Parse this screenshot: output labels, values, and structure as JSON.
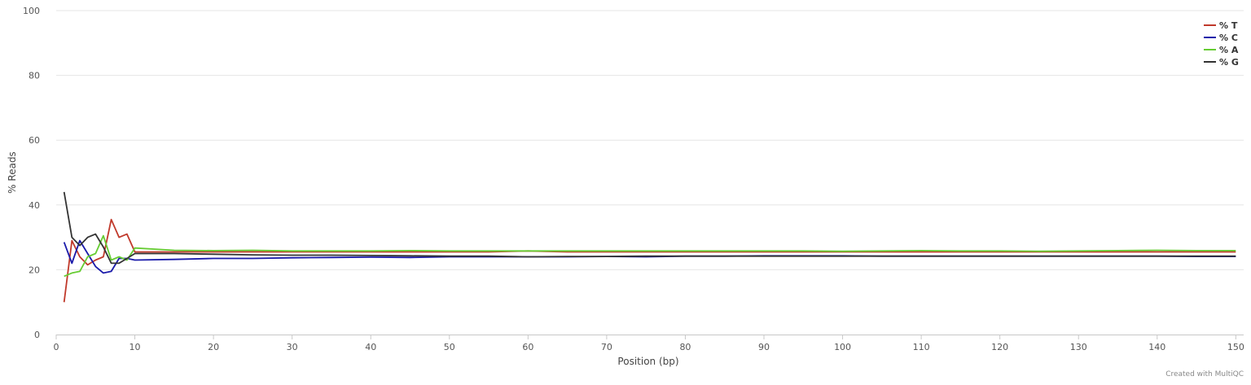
{
  "chart_data": {
    "type": "line",
    "title": "",
    "xlabel": "Position (bp)",
    "ylabel": "% Reads",
    "xlim": [
      0,
      151
    ],
    "ylim": [
      0,
      100
    ],
    "x_ticks": [
      0,
      10,
      20,
      30,
      40,
      50,
      60,
      70,
      80,
      90,
      100,
      110,
      120,
      130,
      140,
      150
    ],
    "y_ticks": [
      0,
      20,
      40,
      60,
      80,
      100
    ],
    "grid": true,
    "legend_position": "top-right",
    "x": [
      1,
      2,
      3,
      4,
      5,
      6,
      7,
      8,
      9,
      10,
      15,
      20,
      25,
      30,
      35,
      40,
      45,
      50,
      55,
      60,
      65,
      70,
      75,
      80,
      85,
      90,
      95,
      100,
      105,
      110,
      115,
      120,
      125,
      130,
      135,
      140,
      145,
      150
    ],
    "series": [
      {
        "name": "% T",
        "color": "#c0392b",
        "values": [
          10,
          29,
          24,
          21.5,
          23,
          24,
          35.5,
          30,
          31,
          25.5,
          25.5,
          25.5,
          25.5,
          25.5,
          25.5,
          25.5,
          25.5,
          25.5,
          25.5,
          25.8,
          25.5,
          25.5,
          25.5,
          25.5,
          25.5,
          25.5,
          25.5,
          25.5,
          25.5,
          25.5,
          25.5,
          25.5,
          25.5,
          25.5,
          25.5,
          25.5,
          25.5,
          25.5
        ]
      },
      {
        "name": "% C",
        "color": "#1a1aaa",
        "values": [
          28.5,
          22,
          29,
          25,
          21,
          19,
          19.5,
          23.5,
          23.5,
          23,
          23.2,
          23.5,
          23.5,
          23.7,
          23.8,
          23.9,
          23.8,
          24,
          24,
          24,
          24,
          24.1,
          24,
          24.2,
          24.2,
          24.3,
          24.3,
          24.3,
          24.2,
          24.2,
          24.2,
          24.2,
          24.2,
          24.2,
          24.2,
          24.2,
          24.1,
          24.1
        ]
      },
      {
        "name": "% A",
        "color": "#66cc33",
        "values": [
          18,
          19,
          19.5,
          24,
          25,
          30.5,
          23,
          24,
          23,
          26.7,
          26,
          25.9,
          26,
          25.8,
          25.8,
          25.8,
          25.9,
          25.8,
          25.8,
          25.8,
          25.8,
          25.8,
          25.8,
          25.8,
          25.8,
          25.8,
          25.8,
          25.7,
          25.8,
          25.9,
          25.8,
          25.8,
          25.7,
          25.8,
          25.9,
          26,
          25.9,
          25.9
        ]
      },
      {
        "name": "% G",
        "color": "#333333",
        "values": [
          44,
          30,
          27.5,
          30,
          31,
          27,
          22,
          22,
          23.5,
          25,
          25,
          24.8,
          24.6,
          24.5,
          24.5,
          24.4,
          24.3,
          24.2,
          24.2,
          24,
          24.1,
          24.1,
          24.2,
          24.2,
          24.2,
          24.2,
          24.2,
          24.2,
          24.2,
          24.2,
          24.2,
          24.2,
          24.2,
          24.2,
          24.2,
          24.2,
          24.2,
          24.2
        ]
      }
    ]
  },
  "footer": {
    "credit": "Created with MultiQC"
  }
}
